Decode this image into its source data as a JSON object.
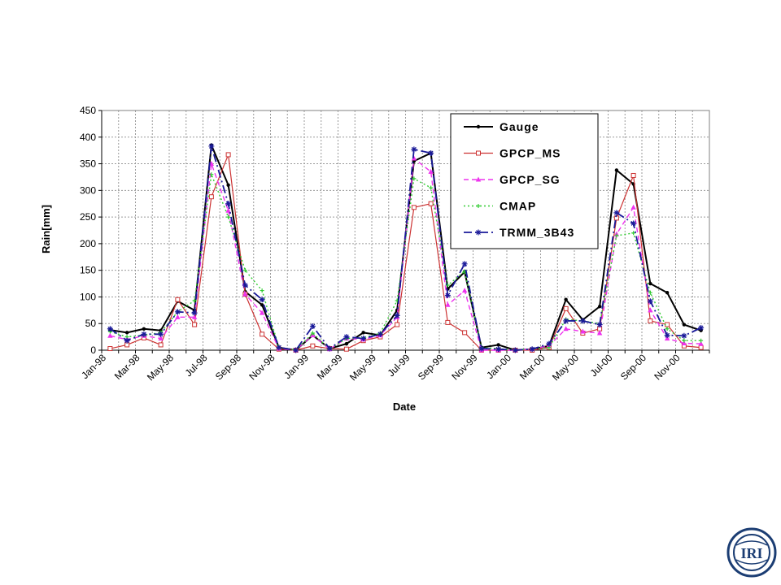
{
  "chart_data": {
    "type": "line",
    "title": "",
    "xlabel": "Date",
    "ylabel": "Rain[mm]",
    "ylim": [
      0,
      450
    ],
    "yticks": [
      0,
      50,
      100,
      150,
      200,
      250,
      300,
      350,
      400,
      450
    ],
    "grid": true,
    "legend_position": "top-right",
    "x": [
      "Jan-98",
      "Feb-98",
      "Mar-98",
      "Apr-98",
      "May-98",
      "Jun-98",
      "Jul-98",
      "Aug-98",
      "Sep-98",
      "Oct-98",
      "Nov-98",
      "Dec-98",
      "Jan-99",
      "Feb-99",
      "Mar-99",
      "Apr-99",
      "May-99",
      "Jun-99",
      "Jul-99",
      "Aug-99",
      "Sep-99",
      "Oct-99",
      "Nov-99",
      "Dec-99",
      "Jan-00",
      "Feb-00",
      "Mar-00",
      "Apr-00",
      "May-00",
      "Jun-00",
      "Jul-00",
      "Aug-00",
      "Sep-00",
      "Oct-00",
      "Nov-00",
      "Dec-00"
    ],
    "x_tick_labels": [
      "Jan-98",
      "Mar-98",
      "May-98",
      "Jul-98",
      "Sep-98",
      "Nov-98",
      "Jan-99",
      "Mar-99",
      "May-99",
      "Jul-99",
      "Sep-99",
      "Nov-99",
      "Jan-00",
      "Mar-00",
      "May-00",
      "Jul-00",
      "Sep-00",
      "Nov-00"
    ],
    "series": [
      {
        "name": "Gauge",
        "color": "#000000",
        "marker": "dot",
        "dash": "",
        "width": 2,
        "values": [
          38,
          33,
          40,
          37,
          92,
          75,
          385,
          310,
          110,
          85,
          5,
          0,
          28,
          3,
          12,
          33,
          28,
          75,
          355,
          370,
          115,
          147,
          5,
          10,
          0,
          2,
          8,
          95,
          57,
          82,
          338,
          312,
          125,
          108,
          48,
          37
        ]
      },
      {
        "name": "GPCP_MS",
        "color": "#cc3333",
        "marker": "square",
        "dash": "",
        "width": 1.2,
        "values": [
          3,
          10,
          23,
          10,
          95,
          48,
          288,
          367,
          105,
          30,
          2,
          0,
          8,
          3,
          2,
          18,
          25,
          48,
          268,
          275,
          52,
          33,
          0,
          0,
          0,
          0,
          5,
          78,
          32,
          40,
          248,
          328,
          55,
          48,
          8,
          5
        ]
      },
      {
        "name": "GPCP_SG",
        "color": "#ee33ee",
        "marker": "triangle",
        "dash": "6,4",
        "width": 1.4,
        "values": [
          27,
          20,
          27,
          22,
          62,
          62,
          350,
          262,
          105,
          70,
          3,
          0,
          28,
          2,
          22,
          20,
          28,
          62,
          360,
          335,
          85,
          112,
          0,
          0,
          0,
          2,
          8,
          40,
          35,
          32,
          218,
          268,
          75,
          22,
          13,
          12
        ]
      },
      {
        "name": "CMAP",
        "color": "#33cc33",
        "marker": "plus",
        "dash": "2,3",
        "width": 1.4,
        "values": [
          35,
          25,
          28,
          33,
          72,
          93,
          330,
          250,
          150,
          112,
          5,
          0,
          32,
          2,
          22,
          23,
          32,
          93,
          322,
          305,
          122,
          148,
          5,
          3,
          0,
          2,
          5,
          58,
          55,
          50,
          215,
          220,
          108,
          40,
          18,
          18
        ]
      },
      {
        "name": "TRMM_3B43",
        "color": "#1a1a99",
        "marker": "asterisk",
        "dash": "10,4,2,4",
        "width": 1.8,
        "values": [
          40,
          18,
          30,
          30,
          72,
          70,
          383,
          275,
          122,
          95,
          5,
          0,
          45,
          3,
          25,
          22,
          30,
          65,
          377,
          370,
          103,
          162,
          3,
          2,
          0,
          2,
          12,
          55,
          55,
          48,
          258,
          238,
          92,
          28,
          27,
          42
        ]
      }
    ]
  },
  "logo": {
    "text": "IRI"
  }
}
